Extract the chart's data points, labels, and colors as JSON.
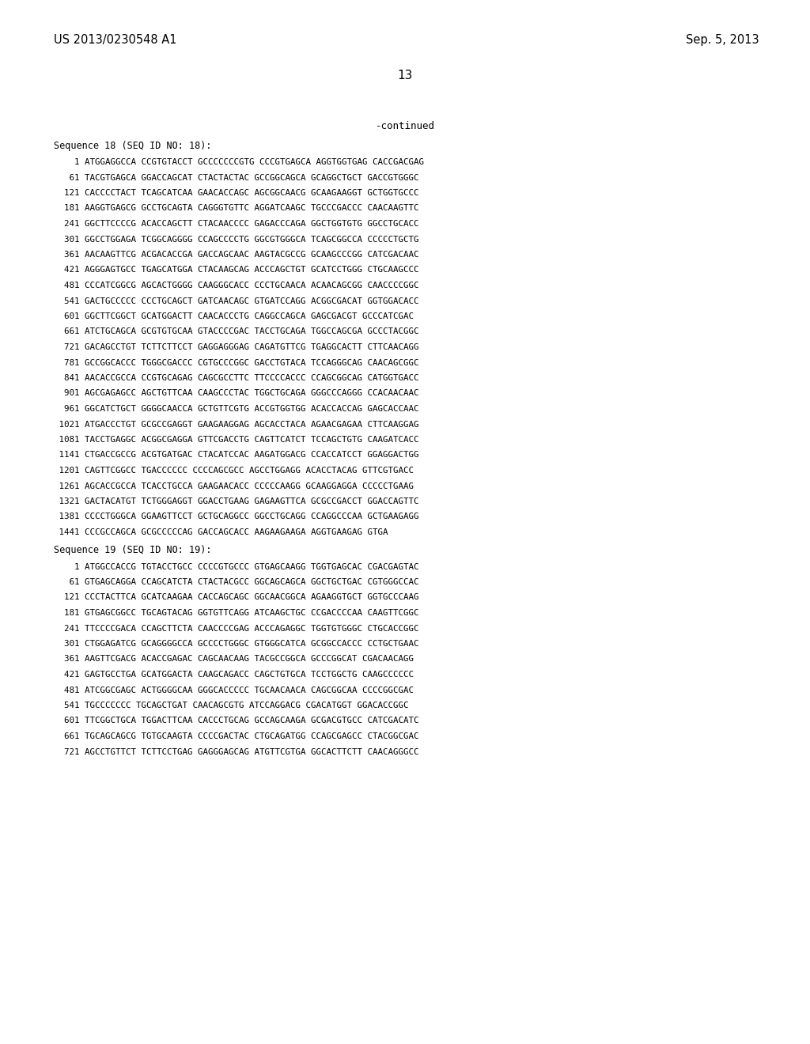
{
  "header_left": "US 2013/0230548 A1",
  "header_right": "Sep. 5, 2013",
  "page_number": "13",
  "continued": "-continued",
  "background_color": "#ffffff",
  "text_color": "#000000",
  "seq18_header": "Sequence 18 (SEQ ID NO: 18):",
  "seq18_lines": [
    "    1 ATGGAGGCCA CCGTGTACCT GCCCCCCCGTG CCCGTGAGCA AGGTGGTGAG CACCGACGAG",
    "   61 TACGTGAGCA GGACCAGCAT CTACTACTAC GCCGGCAGCA GCAGGCTGCT GACCGTGGGC",
    "  121 CACCCCTACT TCAGCATCAA GAACACCAGC AGCGGCAACG GCAAGAAGGT GCTGGTGCCC",
    "  181 AAGGTGAGCG GCCTGCAGTA CAGGGTGTTC AGGATCAAGC TGCCCGACCC CAACAAGTTC",
    "  241 GGCTTCCCCG ACACCAGCTT CTACAACCCC GAGACCCAGA GGCTGGTGTG GGCCTGCACC",
    "  301 GGCCTGGAGA TCGGCAGGGG CCAGCCCCTG GGCGTGGGCA TCAGCGGCCA CCCCCTGCTG",
    "  361 AACAAGTTCG ACGACACCGA GACCAGCAAC AAGTACGCCG GCAAGCCCGG CATCGACAAC",
    "  421 AGGGAGTGCC TGAGCATGGA CTACAAGCAG ACCCAGCTGT GCATCCTGGG CTGCAAGCCC",
    "  481 CCCATCGGCG AGCACTGGGG CAAGGGCACC CCCTGCAACA ACAACAGCGG CAACCCCGGC",
    "  541 GACTGCCCCC CCCTGCAGCT GATCAACAGC GTGATCCAGG ACGGCGACAT GGTGGACACC",
    "  601 GGCTTCGGCT GCATGGACTT CAACACCCTG CAGGCCAGCA GAGCGACGT GCCCATCGAC",
    "  661 ATCTGCAGCA GCGTGTGCAA GTACCCCGAC TACCTGCAGA TGGCCAGCGA GCCCTACGGC",
    "  721 GACAGCCTGT TCTTCTTCCT GAGGAGGGAG CAGATGTTCG TGAGGCACTT CTTCAACAGG",
    "  781 GCCGGCACCC TGGGCGACCC CGTGCCCGGC GACCTGTACA TCCAGGGCAG CAACAGCGGC",
    "  841 AACACCGCCA CCGTGCAGAG CAGCGCCTTC TTCCCCACCC CCAGCGGCAG CATGGTGACC",
    "  901 AGCGAGAGCC AGCTGTTCAA CAAGCCCTAC TGGCTGCAGA GGGCCCAGGG CCACAACAAC",
    "  961 GGCATCTGCT GGGGCAACCA GCTGTTCGTG ACCGTGGTGG ACACCACCAG GAGCACCAAC",
    " 1021 ATGACCCTGT GCGCCGAGGT GAAGAAGGAG AGCACCTACA AGAACGAGAA CTTCAAGGAG",
    " 1081 TACCTGAGGC ACGGCGAGGA GTTCGACCTG CAGTTCATCT TCCAGCTGTG CAAGATCACC",
    " 1141 CTGACCGCCG ACGTGATGAC CTACATCCAC AAGATGGACG CCACCATCCT GGAGGACTGG",
    " 1201 CAGTTCGGCC TGACCCCCC CCCCAGCGCC AGCCTGGAGG ACACCTACAG GTTCGTGACC",
    " 1261 AGCACCGCCA TCACCTGCCA GAAGAACACC CCCCCAAGG GCAAGGAGGA CCCCCTGAAG",
    " 1321 GACTACATGT TCTGGGAGGT GGACCTGAAG GAGAAGTTCA GCGCCGACCT GGACCAGTTC",
    " 1381 CCCCTGGGCA GGAAGTTCCT GCTGCAGGCC GGCCTGCAGG CCAGGCCCAA GCTGAAGAGG",
    " 1441 CCCGCCAGCA GCGCCCCCAG GACCAGCACC AAGAAGAAGA AGGTGAAGAG GTGA"
  ],
  "seq19_header": "Sequence 19 (SEQ ID NO: 19):",
  "seq19_lines": [
    "    1 ATGGCCACCG TGTACCTGCC CCCCGTGCCC GTGAGCAAGG TGGTGAGCAC CGACGAGTAC",
    "   61 GTGAGCAGGA CCAGCATCTA CTACTACGCC GGCAGCAGCA GGCTGCTGAC CGTGGGCCAC",
    "  121 CCCTACTTCA GCATCAAGAA CACCAGCAGC GGCAACGGCA AGAAGGTGCT GGTGCCCAAG",
    "  181 GTGAGCGGCC TGCAGTACAG GGTGTTCAGG ATCAAGCTGC CCGACCCCAA CAAGTTCGGC",
    "  241 TTCCCCGACA CCAGCTTCTA CAACCCCGAG ACCCAGAGGC TGGTGTGGGC CTGCACCGGC",
    "  301 CTGGAGATCG GCAGGGGCCA GCCCCTGGGC GTGGGCATCA GCGGCCACCC CCTGCTGAAC",
    "  361 AAGTTCGACG ACACCGAGAC CAGCAACAAG TACGCCGGCA GCCCGGCAT CGACAACAGG",
    "  421 GAGTGCCTGA GCATGGACTA CAAGCAGACC CAGCTGTGCA TCCTGGCTG CAAGCCCCCC",
    "  481 ATCGGCGAGC ACTGGGGCAA GGGCACCCCC TGCAACAACA CAGCGGCAA CCCCGGCGAC",
    "  541 TGCCCCCCC TGCAGCTGAT CAACAGCGTG ATCCAGGACG CGACATGGT GGACACCGGC",
    "  601 TTCGGCTGCA TGGACTTCAA CACCCTGCAG GCCAGCAAGA GCGACGTGCC CATCGACATC",
    "  661 TGCAGCAGCG TGTGCAAGTA CCCCGACTAC CTGCAGATGG CCAGCGAGCC CTACGGCGAC",
    "  721 AGCCTGTTCT TCTTCCTGAG GAGGGAGCAG ATGTTCGTGA GGCACTTCTT CAACAGGGCC"
  ]
}
